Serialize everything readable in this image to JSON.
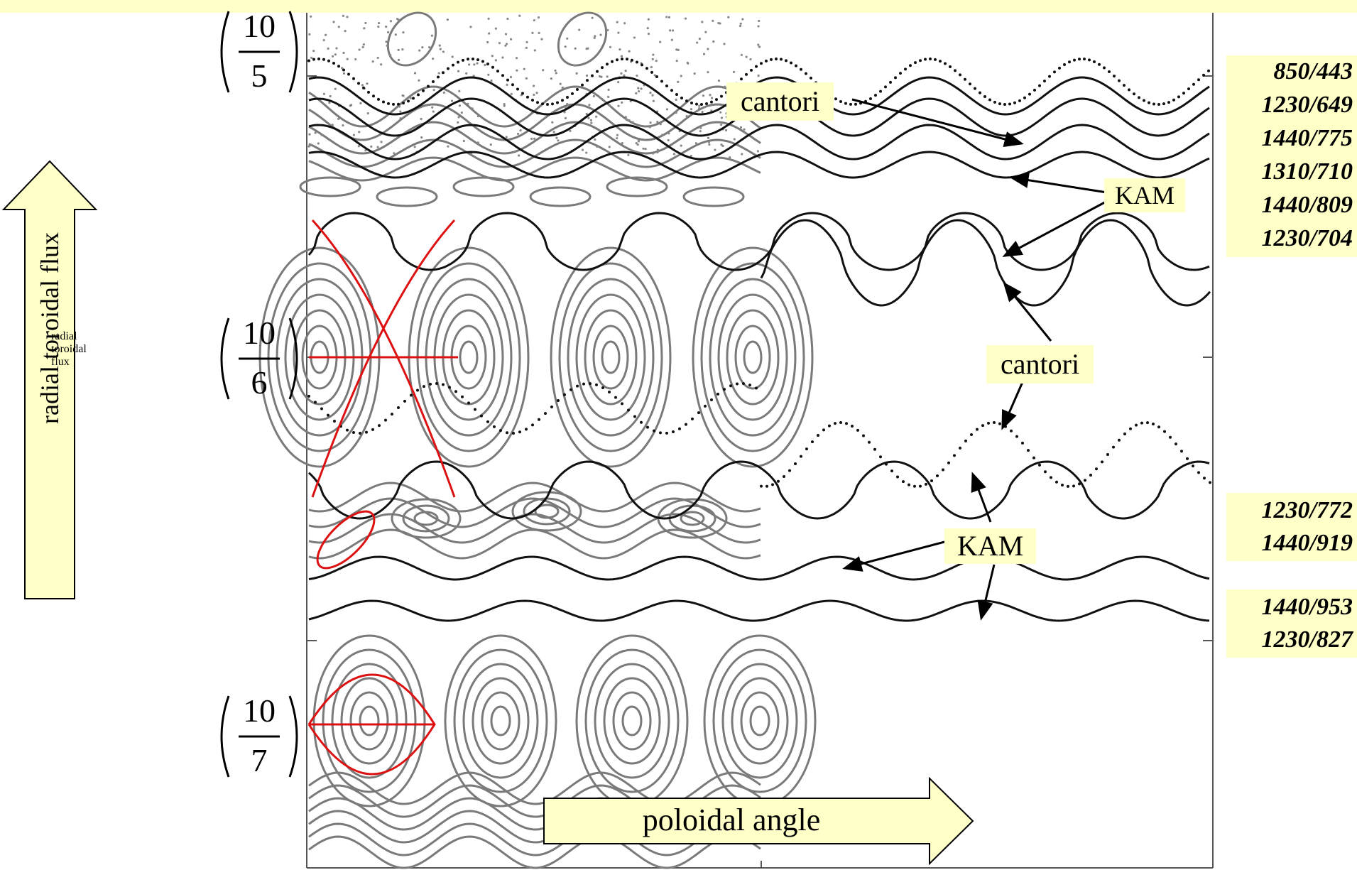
{
  "axes": {
    "y_label": "radial toroidal flux",
    "x_label": "poloidal angle",
    "y_ticks": [
      {
        "num": "10",
        "den": "5"
      },
      {
        "num": "10",
        "den": "6"
      },
      {
        "num": "10",
        "den": "7"
      }
    ]
  },
  "annotations": {
    "cantori_top": "cantori",
    "kam_top": "KAM",
    "cantori_mid": "cantori",
    "kam_bottom": "KAM"
  },
  "ratios_top": [
    "850/443",
    "1230/649",
    "1440/775",
    "1310/710",
    "1440/809",
    "1230/704"
  ],
  "ratios_mid": [
    "1230/772",
    "1440/919"
  ],
  "ratios_bottom": [
    "1440/953",
    "1230/827"
  ],
  "colors": {
    "highlight": "#ffffc8",
    "island_gray": "#7a7a7a",
    "surface_black": "#111111",
    "separatrix_red": "#dd1111"
  }
}
